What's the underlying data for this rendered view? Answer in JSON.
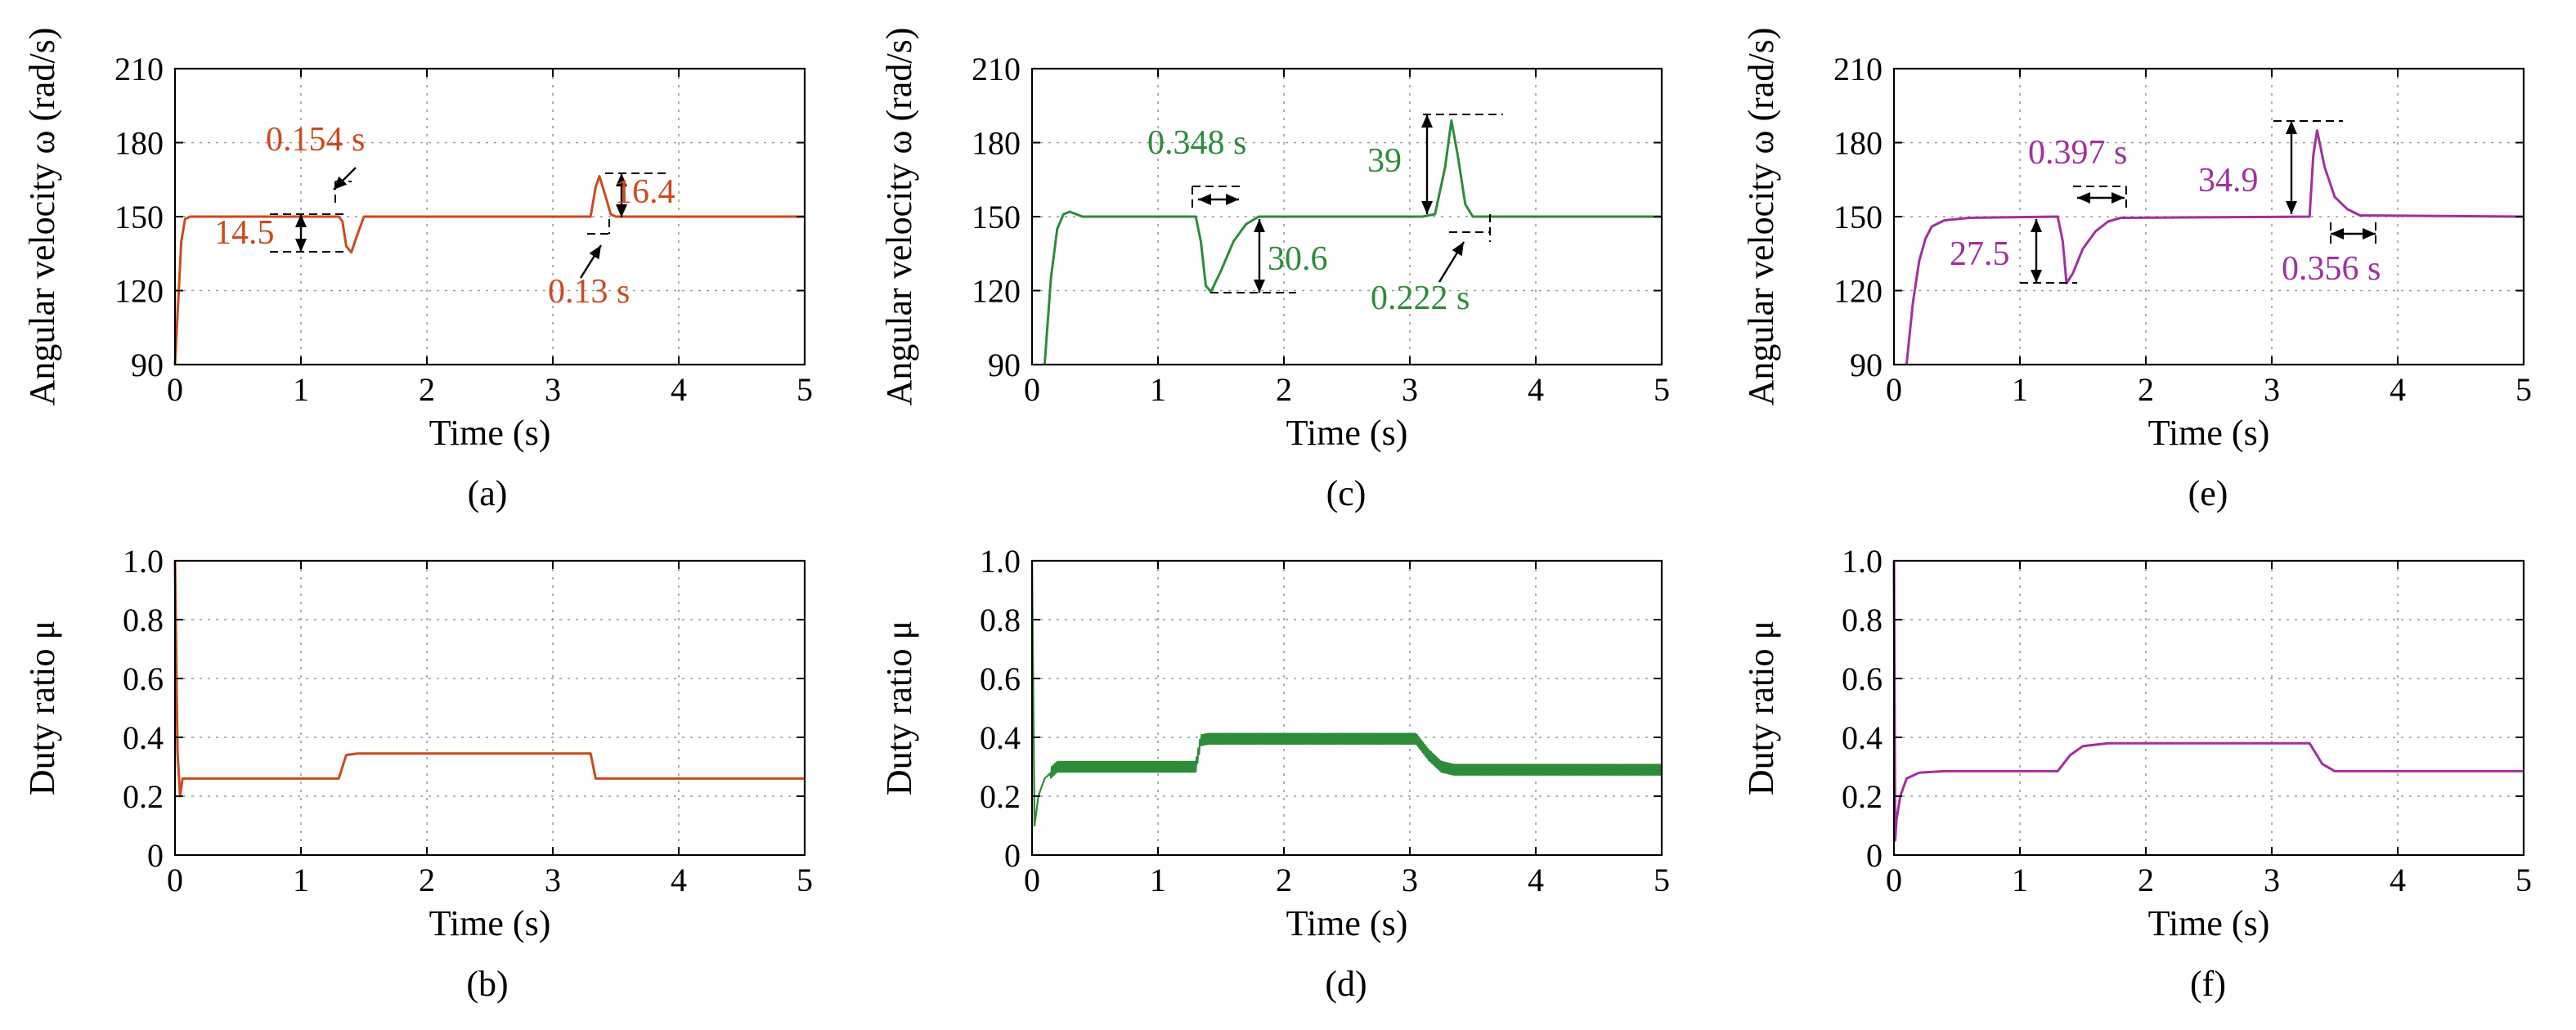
{
  "chart_data": [
    {
      "id": "a",
      "panel_label": "(a)",
      "type": "line",
      "xlabel": "Time (s)",
      "ylabel": "Angular velocity ω (rad/s)",
      "xlim": [
        0,
        5
      ],
      "ylim": [
        90,
        210
      ],
      "xticks": [
        0,
        1,
        2,
        3,
        4,
        5
      ],
      "yticks": [
        90,
        120,
        150,
        180,
        210
      ],
      "grid": true,
      "color": "#cc4a1f",
      "series": [
        {
          "x": [
            0,
            0.05,
            0.08,
            0.12,
            1.3,
            1.33,
            1.36,
            1.4,
            1.45,
            1.5,
            3.3,
            3.34,
            3.37,
            3.42,
            3.46,
            3.5,
            5.0
          ],
          "y": [
            90,
            140,
            149,
            150,
            150,
            148,
            138,
            135.5,
            143,
            150,
            150,
            162,
            166.4,
            158,
            151,
            150,
            150
          ]
        }
      ],
      "annotations": [
        {
          "text": "0.154 s",
          "type": "duration"
        },
        {
          "text": "14.5",
          "type": "amplitude"
        },
        {
          "text": "16.4",
          "type": "amplitude"
        },
        {
          "text": "0.13 s",
          "type": "duration"
        }
      ]
    },
    {
      "id": "b",
      "panel_label": "(b)",
      "type": "line",
      "xlabel": "Time (s)",
      "ylabel": "Duty ratio μ",
      "xlim": [
        0,
        5
      ],
      "ylim": [
        0,
        1.0
      ],
      "xticks": [
        0,
        1,
        2,
        3,
        4,
        5
      ],
      "yticks": [
        0,
        0.2,
        0.4,
        0.6,
        0.8,
        1.0
      ],
      "grid": true,
      "color": "#cc4a1f",
      "series": [
        {
          "x": [
            0,
            0.02,
            0.04,
            0.06,
            0.1,
            1.3,
            1.36,
            1.45,
            3.3,
            3.34,
            3.4,
            5.0
          ],
          "y": [
            1.0,
            0.35,
            0.2,
            0.26,
            0.26,
            0.26,
            0.34,
            0.345,
            0.345,
            0.26,
            0.26,
            0.26
          ]
        }
      ]
    },
    {
      "id": "c",
      "panel_label": "(c)",
      "type": "line",
      "xlabel": "Time (s)",
      "ylabel": "Angular velocity ω (rad/s)",
      "xlim": [
        0,
        5
      ],
      "ylim": [
        90,
        210
      ],
      "xticks": [
        0,
        1,
        2,
        3,
        4,
        5
      ],
      "yticks": [
        90,
        120,
        150,
        180,
        210
      ],
      "grid": true,
      "color": "#2e8b3a",
      "series": [
        {
          "x": [
            0.1,
            0.15,
            0.2,
            0.25,
            0.3,
            0.4,
            1.3,
            1.34,
            1.38,
            1.42,
            1.5,
            1.6,
            1.7,
            1.8,
            3.1,
            3.2,
            3.28,
            3.33,
            3.38,
            3.44,
            3.5,
            5.0
          ],
          "y": [
            90,
            125,
            145,
            151,
            152,
            150,
            150,
            140,
            122,
            119.5,
            128,
            140,
            147,
            150,
            150,
            151,
            170,
            189,
            175,
            155,
            150,
            150
          ]
        }
      ],
      "annotations": [
        {
          "text": "0.348 s",
          "type": "duration"
        },
        {
          "text": "30.6",
          "type": "amplitude"
        },
        {
          "text": "39",
          "type": "amplitude"
        },
        {
          "text": "0.222 s",
          "type": "duration"
        }
      ]
    },
    {
      "id": "d",
      "panel_label": "(d)",
      "type": "line",
      "xlabel": "Time (s)",
      "ylabel": "Duty ratio μ",
      "xlim": [
        0,
        5
      ],
      "ylim": [
        0,
        1.0
      ],
      "xticks": [
        0,
        1,
        2,
        3,
        4,
        5
      ],
      "yticks": [
        0,
        0.2,
        0.4,
        0.6,
        0.8,
        1.0
      ],
      "grid": true,
      "color": "#2e8b3a",
      "series": [
        {
          "x": [
            0,
            0.02,
            0.05,
            0.1,
            0.2,
            0.4,
            1.3,
            1.34,
            1.4,
            3.05,
            3.15,
            3.25,
            3.35,
            5.0
          ],
          "y": [
            1.0,
            0.1,
            0.2,
            0.26,
            0.3,
            0.3,
            0.3,
            0.39,
            0.395,
            0.395,
            0.34,
            0.3,
            0.29,
            0.29
          ],
          "ripple": 0.035
        }
      ]
    },
    {
      "id": "e",
      "panel_label": "(e)",
      "type": "line",
      "xlabel": "Time (s)",
      "ylabel": "Angular velocity ω (rad/s)",
      "xlim": [
        0,
        5
      ],
      "ylim": [
        90,
        210
      ],
      "xticks": [
        0,
        1,
        2,
        3,
        4,
        5
      ],
      "yticks": [
        90,
        120,
        150,
        180,
        210
      ],
      "grid": true,
      "color": "#a0309e",
      "series": [
        {
          "x": [
            0.1,
            0.15,
            0.2,
            0.25,
            0.3,
            0.4,
            0.6,
            1.3,
            1.34,
            1.37,
            1.42,
            1.5,
            1.6,
            1.7,
            1.8,
            3.3,
            3.33,
            3.36,
            3.42,
            3.5,
            3.6,
            3.7,
            5.0
          ],
          "y": [
            90,
            115,
            132,
            141,
            146,
            148.5,
            149.5,
            150,
            140,
            123,
            127,
            137,
            144,
            148,
            149.5,
            150,
            175,
            184.9,
            170,
            158,
            153,
            150.5,
            150
          ]
        }
      ],
      "annotations": [
        {
          "text": "0.397 s",
          "type": "duration"
        },
        {
          "text": "27.5",
          "type": "amplitude"
        },
        {
          "text": "34.9",
          "type": "amplitude"
        },
        {
          "text": "0.356 s",
          "type": "duration"
        }
      ]
    },
    {
      "id": "f",
      "panel_label": "(f)",
      "type": "line",
      "xlabel": "Time (s)",
      "ylabel": "Duty ratio μ",
      "xlim": [
        0,
        5
      ],
      "ylim": [
        0,
        1.0
      ],
      "xticks": [
        0,
        1,
        2,
        3,
        4,
        5
      ],
      "yticks": [
        0,
        0.2,
        0.4,
        0.6,
        0.8,
        1.0
      ],
      "grid": true,
      "color": "#a0309e",
      "series": [
        {
          "x": [
            0,
            0.01,
            0.02,
            0.05,
            0.1,
            0.2,
            0.4,
            1.3,
            1.4,
            1.5,
            1.7,
            3.3,
            3.4,
            3.5,
            5.0
          ],
          "y": [
            1.0,
            0.05,
            0.12,
            0.2,
            0.26,
            0.28,
            0.285,
            0.285,
            0.34,
            0.37,
            0.38,
            0.38,
            0.31,
            0.285,
            0.285
          ]
        }
      ]
    }
  ]
}
